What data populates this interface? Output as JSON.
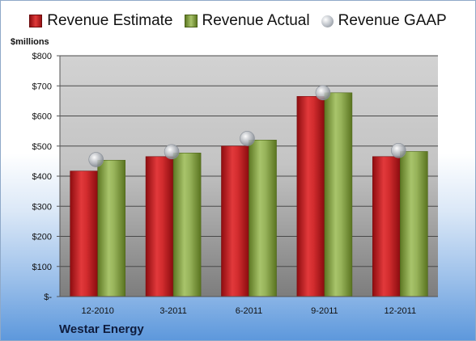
{
  "chart_data": {
    "type": "bar",
    "categories": [
      "12-2010",
      "3-2011",
      "6-2011",
      "9-2011",
      "12-2011"
    ],
    "series": [
      {
        "name": "Revenue Estimate",
        "values": [
          417,
          465,
          500,
          665,
          465
        ],
        "color": "#c8282a"
      },
      {
        "name": "Revenue Actual",
        "values": [
          453,
          477,
          520,
          677,
          482
        ],
        "color": "#8fab4f"
      },
      {
        "name": "Revenue GAAP",
        "values": [
          455,
          481,
          525,
          677,
          485
        ],
        "color": "#b0b5bc",
        "marker": "circle"
      }
    ],
    "ylim": [
      0,
      800
    ],
    "yticks": [
      0,
      100,
      200,
      300,
      400,
      500,
      600,
      700,
      800
    ],
    "ytick_labels": [
      "$-",
      "$100",
      "$200",
      "$300",
      "$400",
      "$500",
      "$600",
      "$700",
      "$800"
    ],
    "ylabel": "$millions",
    "grid": true,
    "legend_position": "top"
  },
  "footer": {
    "company": "Westar Energy"
  }
}
